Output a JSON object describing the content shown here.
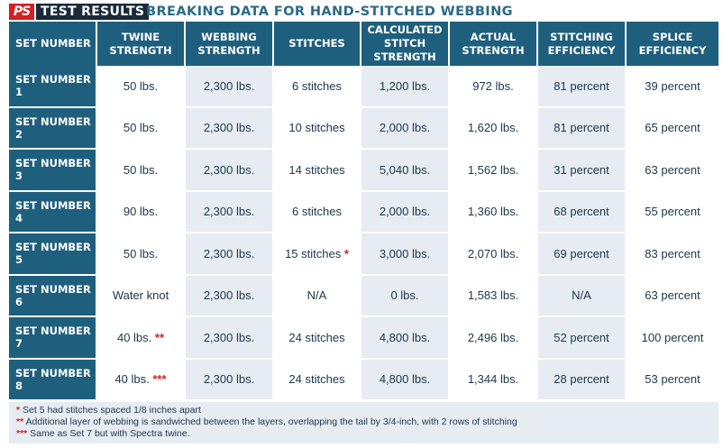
{
  "header": {
    "logo": "PS",
    "tag": "TEST RESULTS",
    "title": "BREAKING DATA FOR HAND-STITCHED WEBBING"
  },
  "colors": {
    "header_bg": "#1f5f7e",
    "shade": "#e6ecf2",
    "accent_red": "#d42020",
    "title_blue": "#2a6a88"
  },
  "chart_data": {
    "type": "table",
    "title": "BREAKING DATA FOR HAND-STITCHED WEBBING",
    "columns": [
      "SET NUMBER",
      "TWINE STRENGTH",
      "WEBBING STRENGTH",
      "STITCHES",
      "CALCULATED STITCH STRENGTH",
      "ACTUAL STRENGTH",
      "STITCHING EFFICIENCY",
      "SPLICE EFFICIENCY"
    ],
    "rows": [
      {
        "set": "SET NUMBER 1",
        "twine": "50 lbs.",
        "twine_mark": "",
        "webbing": "2,300 lbs.",
        "stitches": "6 stitches",
        "stitches_mark": "",
        "calculated": "1,200 lbs.",
        "actual": "972 lbs.",
        "stitching_eff": "81  percent",
        "splice_eff": "39 percent"
      },
      {
        "set": "SET NUMBER 2",
        "twine": "50 lbs.",
        "twine_mark": "",
        "webbing": "2,300 lbs.",
        "stitches": "10 stitches",
        "stitches_mark": "",
        "calculated": "2,000 lbs.",
        "actual": "1,620 lbs.",
        "stitching_eff": "81 percent",
        "splice_eff": "65 percent"
      },
      {
        "set": "SET NUMBER 3",
        "twine": "50 lbs.",
        "twine_mark": "",
        "webbing": "2,300 lbs.",
        "stitches": "14 stitches",
        "stitches_mark": "",
        "calculated": "5,040 lbs.",
        "actual": "1,562 lbs.",
        "stitching_eff": "31 percent",
        "splice_eff": "63 percent"
      },
      {
        "set": "SET NUMBER 4",
        "twine": "90 lbs.",
        "twine_mark": "",
        "webbing": "2,300 lbs.",
        "stitches": "6 stitches",
        "stitches_mark": "",
        "calculated": "2,000 lbs.",
        "actual": "1,360 lbs.",
        "stitching_eff": "68 percent",
        "splice_eff": "55 percent"
      },
      {
        "set": "SET NUMBER 5",
        "twine": "50 lbs.",
        "twine_mark": "",
        "webbing": "2,300 lbs.",
        "stitches": "15 stitches",
        "stitches_mark": "*",
        "calculated": "3,000 lbs.",
        "actual": "2,070 lbs.",
        "stitching_eff": "69 percent",
        "splice_eff": "83 percent"
      },
      {
        "set": "SET NUMBER 6",
        "twine": "Water knot",
        "twine_mark": "",
        "webbing": "2,300 lbs.",
        "stitches": "N/A",
        "stitches_mark": "",
        "calculated": "0 lbs.",
        "actual": "1,583 lbs.",
        "stitching_eff": "N/A",
        "splice_eff": "63 percent"
      },
      {
        "set": "SET NUMBER 7",
        "twine": "40 lbs.",
        "twine_mark": "**",
        "webbing": "2,300 lbs.",
        "stitches": "24 stitches",
        "stitches_mark": "",
        "calculated": "4,800 lbs.",
        "actual": "2,496 lbs.",
        "stitching_eff": "52 percent",
        "splice_eff": "100 percent"
      },
      {
        "set": "SET NUMBER 8",
        "twine": "40 lbs.",
        "twine_mark": "***",
        "webbing": "2,300 lbs.",
        "stitches": "24 stitches",
        "stitches_mark": "",
        "calculated": "4,800 lbs.",
        "actual": "1,344 lbs.",
        "stitching_eff": "28 percent",
        "splice_eff": "53 percent"
      }
    ]
  },
  "footnotes": [
    {
      "mark": "*",
      "text": " Set 5 had stitches spaced 1/8 inches apart"
    },
    {
      "mark": "**",
      "text": " Additional layer of webbing is sandwiched between the layers, overlapping the tail by 3/4-inch, with 2 rows of stitching"
    },
    {
      "mark": "***",
      "text": " Same as Set 7 but with Spectra twine."
    }
  ]
}
